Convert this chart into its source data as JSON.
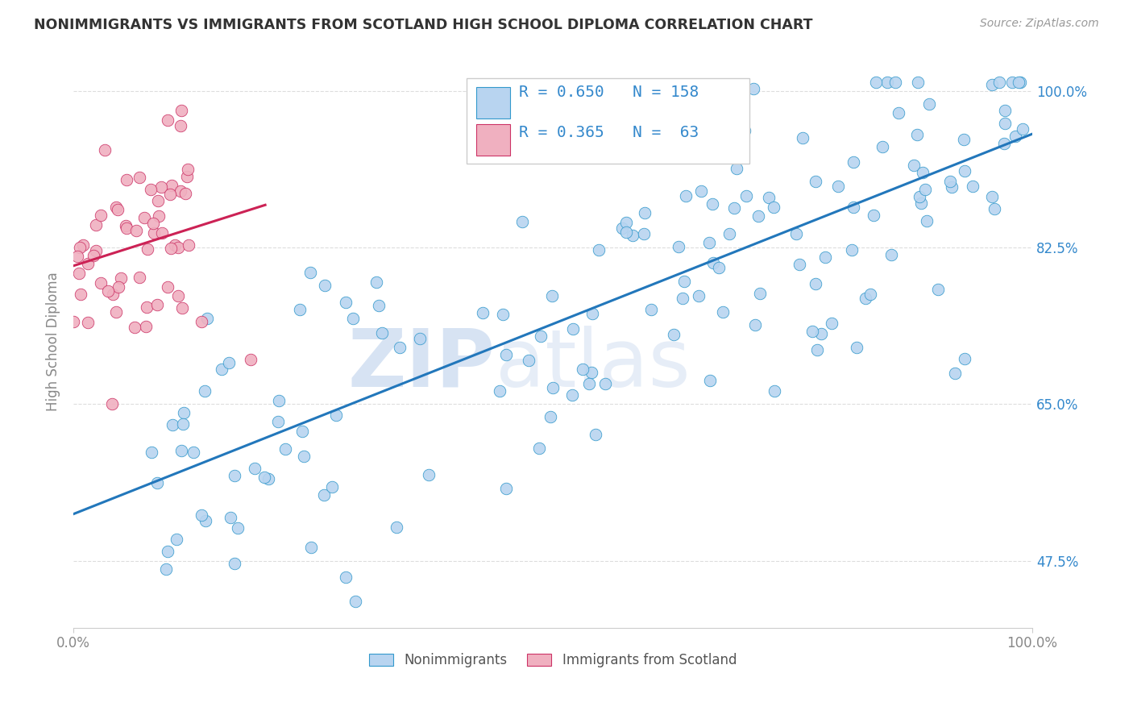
{
  "title": "NONIMMIGRANTS VS IMMIGRANTS FROM SCOTLAND HIGH SCHOOL DIPLOMA CORRELATION CHART",
  "source": "Source: ZipAtlas.com",
  "ylabel": "High School Diploma",
  "R_nonimm": 0.65,
  "N_nonimm": 158,
  "R_imm": 0.365,
  "N_imm": 63,
  "blue_fill": "#b8d4f0",
  "blue_edge": "#3399cc",
  "pink_fill": "#f0b0c0",
  "pink_edge": "#cc3366",
  "blue_line": "#2277bb",
  "pink_line": "#cc2255",
  "watermark_color": "#c8d8ee",
  "title_color": "#333333",
  "legend_value_color": "#3388cc",
  "axis_color": "#888888",
  "grid_color": "#dddddd",
  "right_tick_color": "#3388cc",
  "background_color": "#ffffff",
  "ytick_vals": [
    0.475,
    0.65,
    0.825,
    1.0
  ],
  "ytick_labels": [
    "47.5%",
    "65.0%",
    "82.5%",
    "100.0%"
  ],
  "ymin": 0.4,
  "ymax": 1.04,
  "xmin": 0.0,
  "xmax": 1.0
}
